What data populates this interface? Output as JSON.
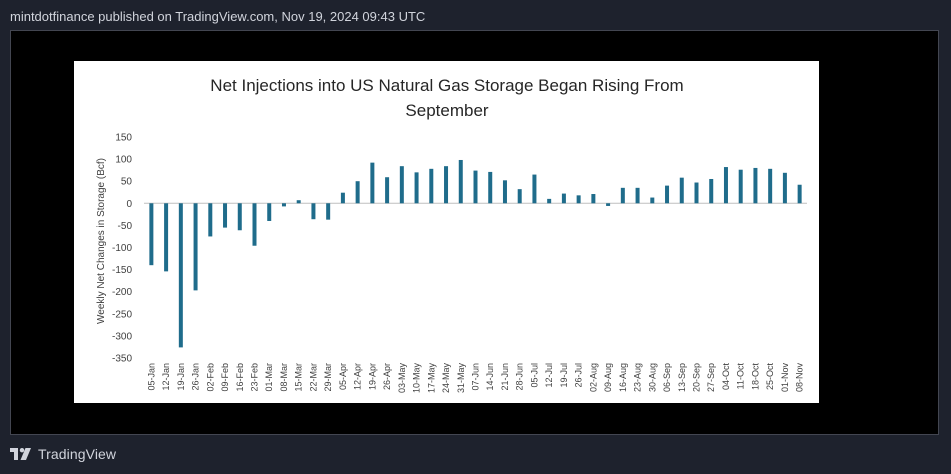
{
  "header": {
    "publisher_line": "mintdotfinance published on TradingView.com, Nov 19, 2024 09:43 UTC"
  },
  "footer": {
    "brand": "TradingView",
    "logo_icon": "tradingview-logo-icon"
  },
  "colors": {
    "bar": "#1f6c8b",
    "background": "#1e222d",
    "frame": "#000000"
  },
  "chart_data": {
    "type": "bar",
    "title_line1": "Net Injections into US Natural Gas Storage Began Rising From",
    "title_line2": "September",
    "ylabel": "Weekly Net Changes in Storage (Bcf)",
    "xlabel": "",
    "ylim": [
      -350,
      150
    ],
    "yticks": [
      150,
      100,
      50,
      0,
      -50,
      -100,
      -150,
      -200,
      -250,
      -300,
      -350
    ],
    "grid": false,
    "categories": [
      "05-Jan",
      "12-Jan",
      "19-Jan",
      "26-Jan",
      "02-Feb",
      "09-Feb",
      "16-Feb",
      "23-Feb",
      "01-Mar",
      "08-Mar",
      "15-Mar",
      "22-Mar",
      "29-Mar",
      "05-Apr",
      "12-Apr",
      "19-Apr",
      "26-Apr",
      "03-May",
      "10-May",
      "17-May",
      "24-May",
      "31-May",
      "07-Jun",
      "14-Jun",
      "21-Jun",
      "28-Jun",
      "05-Jul",
      "12-Jul",
      "19-Jul",
      "26-Jul",
      "02-Aug",
      "09-Aug",
      "16-Aug",
      "23-Aug",
      "30-Aug",
      "06-Sep",
      "13-Sep",
      "20-Sep",
      "27-Sep",
      "04-Oct",
      "11-Oct",
      "18-Oct",
      "25-Oct",
      "01-Nov",
      "08-Nov"
    ],
    "values": [
      -140,
      -154,
      -326,
      -197,
      -75,
      -55,
      -61,
      -96,
      -40,
      -7,
      7,
      -36,
      -37,
      24,
      50,
      92,
      59,
      84,
      70,
      78,
      84,
      98,
      74,
      71,
      52,
      32,
      65,
      10,
      22,
      18,
      21,
      -6,
      35,
      35,
      13,
      40,
      58,
      47,
      55,
      82,
      76,
      80,
      78,
      69,
      42
    ]
  }
}
